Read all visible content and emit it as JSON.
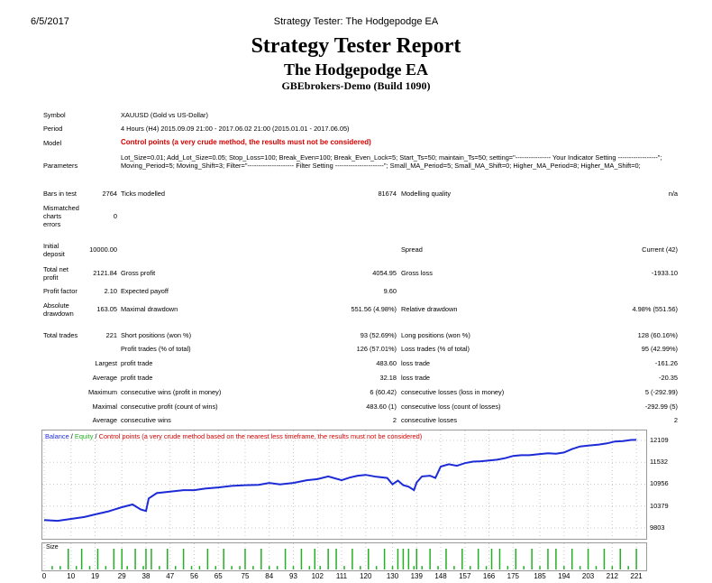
{
  "header": {
    "date": "6/5/2017",
    "page_title": "Strategy Tester: The Hodgepodge EA"
  },
  "report": {
    "title": "Strategy Tester Report",
    "ea_name": "The Hodgepodge EA",
    "server": "GBEbrokers-Demo (Build 1090)"
  },
  "info": {
    "symbol_label": "Symbol",
    "symbol_value": "XAUUSD (Gold vs US-Dollar)",
    "period_label": "Period",
    "period_value": "4 Hours (H4) 2015.09.09 21:00 - 2017.06.02 21:00 (2015.01.01 - 2017.06.05)",
    "model_label": "Model",
    "model_value": "Control points (a very crude method, the results must not be considered)",
    "parameters_label": "Parameters",
    "parameters_value": "Lot_Size=0.01; Add_Lot_Size=0.05; Stop_Loss=100; Break_Even=100; Break_Even_Lock=5; Start_Ts=50; maintain_Ts=50; setting=\"---------------- Your Indicator Setting ------------------\"; Moving_Period=5; Moving_Shift=3; Filter=\"--------------------- Filter Setting ----------------------\"; Small_MA_Period=5; Small_MA_Shift=0; Higher_MA_Period=8; Higher_MA_Shift=0;",
    "bars_label": "Bars in test",
    "bars_value": "2764",
    "ticks_label": "Ticks modelled",
    "ticks_value": "81674",
    "quality_label": "Modelling quality",
    "quality_value": "n/a",
    "mismatch_label_1": "Mismatched",
    "mismatch_label_2": "charts",
    "mismatch_label_3": "errors",
    "mismatch_value": "0"
  },
  "results": {
    "initial_deposit_label_1": "Initial",
    "initial_deposit_label_2": "deposit",
    "initial_deposit_value": "10000.00",
    "spread_label": "Spread",
    "spread_value": "Current (42)",
    "total_net_label_1": "Total net",
    "total_net_label_2": "profit",
    "total_net_value": "2121.84",
    "gross_profit_label": "Gross profit",
    "gross_profit_value": "4054.95",
    "gross_loss_label": "Gross loss",
    "gross_loss_value": "-1933.10",
    "profit_factor_label": "Profit factor",
    "profit_factor_value": "2.10",
    "expected_payoff_label": "Expected payoff",
    "expected_payoff_value": "9.60",
    "abs_dd_label_1": "Absolute",
    "abs_dd_label_2": "drawdown",
    "abs_dd_value": "163.05",
    "max_dd_label": "Maximal drawdown",
    "max_dd_value": "551.56 (4.98%)",
    "rel_dd_label": "Relative drawdown",
    "rel_dd_value": "4.98% (551.56)"
  },
  "trades": {
    "total_label": "Total trades",
    "total_value": "221",
    "short_label": "Short positions (won %)",
    "short_value": "93 (52.69%)",
    "long_label": "Long positions (won %)",
    "long_value": "128 (60.16%)",
    "profit_trades_label": "Profit trades (% of total)",
    "profit_trades_value": "126 (57.01%)",
    "loss_trades_label": "Loss trades (% of total)",
    "loss_trades_value": "95 (42.99%)",
    "largest_label": "Largest",
    "largest_profit_label": "profit trade",
    "largest_profit_value": "483.60",
    "largest_loss_label": "loss trade",
    "largest_loss_value": "-161.26",
    "average_label": "Average",
    "average_profit_label": "profit trade",
    "average_profit_value": "32.18",
    "average_loss_label": "loss trade",
    "average_loss_value": "-20.35",
    "maximum_label": "Maximum",
    "max_cons_wins_label": "consecutive wins (profit in money)",
    "max_cons_wins_value": "6 (60.42)",
    "max_cons_losses_label": "consecutive losses (loss in money)",
    "max_cons_losses_value": "5 (-292.99)",
    "maximal_label": "Maximal",
    "maximal_profit_label": "consecutive profit (count of wins)",
    "maximal_profit_value": "483.60 (1)",
    "maximal_loss_label": "consecutive loss (count of losses)",
    "maximal_loss_value": "-292.99 (5)",
    "avg_label": "Average",
    "avg_cons_wins_label": "consecutive wins",
    "avg_cons_wins_value": "2",
    "avg_cons_losses_label": "consecutive losses",
    "avg_cons_losses_value": "2"
  },
  "chart_legend": {
    "balance": "Balance",
    "sep1": " / ",
    "equity": "Equity",
    "sep2": " / ",
    "control": "Control points (a very crude method based on the nearest less timeframe, the results must not be considered)"
  },
  "size_panel_label": "Size",
  "colors": {
    "balance": "#1c2bd6",
    "equity": "#24b024",
    "size_bars": "#24b024",
    "warning": "#d40000"
  },
  "chart_data": {
    "type": "line",
    "series": [
      {
        "name": "Balance",
        "x": [
          0,
          5,
          10,
          15,
          19,
          24,
          29,
          33,
          36,
          38,
          39,
          42,
          47,
          52,
          56,
          60,
          65,
          70,
          75,
          80,
          84,
          88,
          93,
          98,
          102,
          106,
          111,
          114,
          117,
          120,
          124,
          128,
          130,
          132,
          134,
          136,
          138,
          139,
          141,
          144,
          146,
          148,
          151,
          154,
          157,
          160,
          163,
          166,
          169,
          172,
          175,
          178,
          181,
          185,
          188,
          191,
          194,
          197,
          200,
          203,
          207,
          210,
          213,
          216,
          219,
          221
        ],
        "y": [
          10010,
          9990,
          10040,
          10090,
          10160,
          10240,
          10350,
          10420,
          10290,
          10250,
          10580,
          10720,
          10760,
          10800,
          10800,
          10840,
          10870,
          10910,
          10930,
          10940,
          10990,
          10950,
          10990,
          11060,
          11090,
          11160,
          11060,
          11130,
          11180,
          11200,
          11150,
          11120,
          10950,
          11050,
          10930,
          10890,
          10800,
          11000,
          11160,
          11180,
          11120,
          11420,
          11480,
          11440,
          11510,
          11550,
          11560,
          11580,
          11600,
          11640,
          11700,
          11720,
          11720,
          11750,
          11770,
          11760,
          11790,
          11880,
          11950,
          11970,
          12000,
          12030,
          12080,
          12090,
          12120,
          12121.84
        ]
      },
      {
        "name": "Size",
        "x": [
          3,
          6,
          9,
          12,
          14,
          17,
          20,
          23,
          26,
          29,
          31,
          34,
          37,
          38,
          40,
          43,
          46,
          49,
          52,
          55,
          58,
          61,
          64,
          67,
          70,
          73,
          75,
          78,
          81,
          84,
          87,
          90,
          93,
          96,
          99,
          101,
          103,
          106,
          109,
          112,
          115,
          118,
          121,
          124,
          127,
          130,
          132,
          134,
          136,
          138,
          139,
          141,
          144,
          147,
          150,
          153,
          156,
          159,
          162,
          165,
          167,
          170,
          173,
          176,
          179,
          182,
          185,
          188,
          191,
          194,
          197,
          200,
          203,
          206,
          209,
          212,
          215,
          218,
          221
        ],
        "y": [
          0.01,
          0.01,
          0.06,
          0.01,
          0.06,
          0.01,
          0.06,
          0.01,
          0.06,
          0.06,
          0.01,
          0.06,
          0.01,
          0.06,
          0.06,
          0.01,
          0.06,
          0.01,
          0.06,
          0.01,
          0.01,
          0.06,
          0.01,
          0.06,
          0.01,
          0.01,
          0.06,
          0.01,
          0.06,
          0.01,
          0.01,
          0.06,
          0.01,
          0.06,
          0.01,
          0.06,
          0.01,
          0.06,
          0.06,
          0.01,
          0.06,
          0.01,
          0.06,
          0.01,
          0.06,
          0.01,
          0.06,
          0.06,
          0.06,
          0.01,
          0.06,
          0.01,
          0.06,
          0.01,
          0.06,
          0.01,
          0.06,
          0.01,
          0.06,
          0.01,
          0.06,
          0.06,
          0.01,
          0.06,
          0.01,
          0.06,
          0.01,
          0.06,
          0.06,
          0.01,
          0.06,
          0.01,
          0.06,
          0.01,
          0.06,
          0.01,
          0.06,
          0.01,
          0.06
        ]
      }
    ],
    "y_ticks": [
      "12109",
      "11532",
      "10956",
      "10379",
      "9803"
    ],
    "y_tick_values": [
      12109,
      11532,
      10956,
      10379,
      9803
    ],
    "ylim": [
      9803,
      12180
    ],
    "x_ticks": [
      "0",
      "10",
      "19",
      "29",
      "38",
      "47",
      "56",
      "65",
      "75",
      "84",
      "93",
      "102",
      "111",
      "120",
      "130",
      "139",
      "148",
      "157",
      "166",
      "175",
      "185",
      "194",
      "203",
      "212",
      "221"
    ],
    "x_tick_values": [
      0,
      10,
      19,
      29,
      38,
      47,
      56,
      65,
      75,
      84,
      93,
      102,
      111,
      120,
      130,
      139,
      148,
      157,
      166,
      175,
      185,
      194,
      203,
      212,
      221
    ],
    "xlim": [
      0,
      224
    ],
    "grid": true
  }
}
